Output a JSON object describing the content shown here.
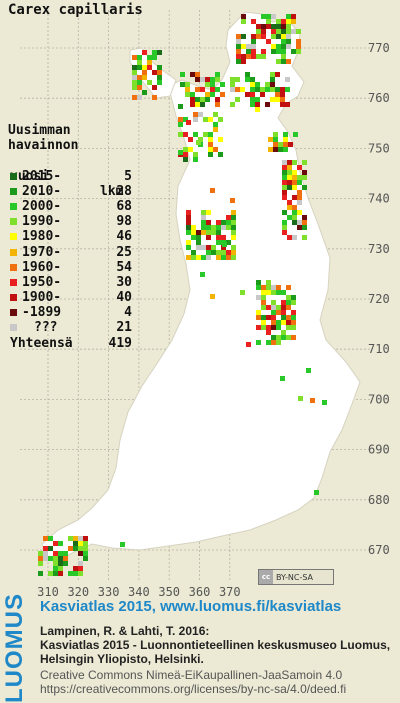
{
  "map": {
    "species": "Carex capillaris",
    "y_axis_labels": [
      "770",
      "760",
      "750",
      "740",
      "730",
      "720",
      "710",
      "700",
      "690",
      "680",
      "670"
    ],
    "x_axis_labels": [
      "310",
      "320",
      "330",
      "340",
      "350",
      "360",
      "370"
    ],
    "land_color": "#ffffff",
    "background_color": "#ece9d4",
    "grid_color": "#b6b4a4"
  },
  "legend": {
    "header_lines": [
      "Uusimman",
      "havainnon"
    ],
    "col_year": "vuosi",
    "col_count": "lkm",
    "rows": [
      {
        "label": "2015-",
        "count": "5",
        "color": "#1a6b1a"
      },
      {
        "label": "2010-",
        "count": "28",
        "color": "#1c9a1c"
      },
      {
        "label": "2000-",
        "count": "68",
        "color": "#28c828"
      },
      {
        "label": "1990-",
        "count": "98",
        "color": "#7ee02a"
      },
      {
        "label": "1980-",
        "count": "46",
        "color": "#ffff00"
      },
      {
        "label": "1970-",
        "count": "25",
        "color": "#f2b400"
      },
      {
        "label": "1960-",
        "count": "54",
        "color": "#f07010"
      },
      {
        "label": "1950-",
        "count": "30",
        "color": "#e82020"
      },
      {
        "label": "1900-",
        "count": "40",
        "color": "#c01010"
      },
      {
        "label": "-1899",
        "count": "4",
        "color": "#6a0a0a"
      },
      {
        "label": "???",
        "count": "21",
        "color": "#c8c8c8"
      }
    ],
    "total_label": "Yhteensä",
    "total_count": "419"
  },
  "license_badge": {
    "cc": "cc",
    "text": "BY-NC-SA"
  },
  "footer": {
    "logo": "LUOMUS",
    "atlas_link": "Kasviatlas 2015, www.luomus.fi/kasviatlas",
    "citation_lines": [
      "Lampinen, R. & Lahti, T. 2016:",
      "Kasviatlas 2015 - Luonnontieteellinen keskusmuseo Luomus,",
      "Helsingin Yliopisto, Helsinki."
    ],
    "license_lines": [
      "Creative Commons Nimeä-EiKaupallinen-JaaSamoin 4.0",
      "https://creativecommons.org/licenses/by-nc-sa/4.0/deed.fi"
    ]
  }
}
